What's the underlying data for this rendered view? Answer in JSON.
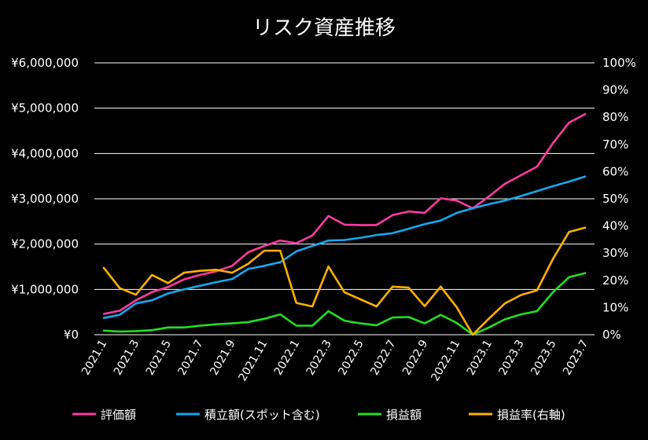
{
  "chart_data": {
    "type": "line",
    "title": "リスク資産推移",
    "x": [
      "2021.1",
      "2021.2",
      "2021.3",
      "2021.4",
      "2021.5",
      "2021.6",
      "2021.7",
      "2021.8",
      "2021.9",
      "2021.10",
      "2021.11",
      "2021.12",
      "2022.1",
      "2022.2",
      "2022.3",
      "2022.4",
      "2022.5",
      "2022.6",
      "2022.7",
      "2022.8",
      "2022.9",
      "2022.10",
      "2022.11",
      "2022.12",
      "2023.1",
      "2023.2",
      "2023.3",
      "2023.4",
      "2023.5",
      "2023.6",
      "2023.7"
    ],
    "x_tick_labels": [
      "2021.1",
      "2021.3",
      "2021.5",
      "2021.7",
      "2021.9",
      "2021.11",
      "2022.1",
      "2022.3",
      "2022.5",
      "2022.7",
      "2022.9",
      "2022.11",
      "2023.1",
      "2023.3",
      "2023.5",
      "2023.7"
    ],
    "y_left": {
      "min": 0,
      "max": 6000000,
      "ticks": [
        0,
        1000000,
        2000000,
        3000000,
        4000000,
        5000000,
        6000000
      ],
      "tick_labels": [
        "¥0",
        "¥1,000,000",
        "¥2,000,000",
        "¥3,000,000",
        "¥4,000,000",
        "¥5,000,000",
        "¥6,000,000"
      ]
    },
    "y_right": {
      "min": 0,
      "max": 100,
      "ticks": [
        0,
        10,
        20,
        30,
        40,
        50,
        60,
        70,
        80,
        90,
        100
      ],
      "tick_labels": [
        "0%",
        "10%",
        "20%",
        "30%",
        "40%",
        "50%",
        "60%",
        "70%",
        "80%",
        "90%",
        "100%"
      ]
    },
    "grid": true,
    "legend_position": "bottom",
    "series": [
      {
        "name": "評価額",
        "axis": "left",
        "color": "#ff3aa0",
        "values": [
          460000,
          530000,
          760000,
          940000,
          1050000,
          1220000,
          1320000,
          1400000,
          1520000,
          1820000,
          1960000,
          2080000,
          2020000,
          2190000,
          2620000,
          2430000,
          2420000,
          2420000,
          2640000,
          2720000,
          2690000,
          3010000,
          2960000,
          2790000,
          3050000,
          3330000,
          3520000,
          3710000,
          4230000,
          4680000,
          4870000
        ]
      },
      {
        "name": "積立額(スポット含む)",
        "axis": "left",
        "color": "#14a8f0",
        "values": [
          370000,
          440000,
          690000,
          760000,
          910000,
          1000000,
          1080000,
          1160000,
          1230000,
          1450000,
          1520000,
          1600000,
          1840000,
          1960000,
          2080000,
          2090000,
          2140000,
          2200000,
          2240000,
          2340000,
          2440000,
          2520000,
          2690000,
          2790000,
          2880000,
          2960000,
          3060000,
          3170000,
          3280000,
          3380000,
          3490000
        ]
      },
      {
        "name": "損益額",
        "axis": "left",
        "color": "#20e020",
        "values": [
          90000,
          70000,
          80000,
          100000,
          160000,
          160000,
          200000,
          230000,
          250000,
          280000,
          350000,
          450000,
          200000,
          200000,
          520000,
          310000,
          250000,
          210000,
          380000,
          390000,
          250000,
          440000,
          260000,
          0,
          160000,
          340000,
          450000,
          520000,
          940000,
          1270000,
          1360000
        ]
      },
      {
        "name": "損益率(右軸)",
        "axis": "right",
        "color": "#ffb000",
        "values": [
          24.6,
          17.1,
          14.7,
          22.0,
          19.0,
          22.8,
          23.5,
          23.9,
          22.8,
          26.1,
          30.9,
          30.9,
          11.7,
          10.4,
          25.1,
          15.6,
          13.0,
          10.4,
          17.7,
          17.3,
          10.5,
          17.7,
          10.1,
          0.0,
          5.9,
          11.5,
          14.6,
          16.3,
          27.9,
          37.8,
          39.4
        ]
      }
    ]
  }
}
